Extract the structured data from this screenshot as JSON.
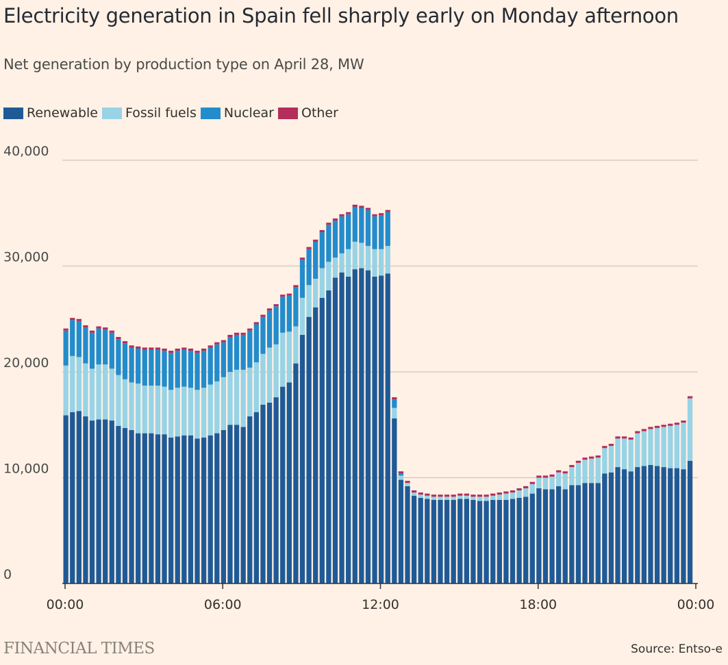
{
  "title": "Electricity generation in Spain fell sharply early on Monday afternoon",
  "subtitle": "Net generation by production type on April 28, MW",
  "source": "Source: Entso-e",
  "brand": "FINANCIAL TIMES",
  "colors": {
    "renewable": "#1F5A96",
    "fossil": "#98D3E6",
    "nuclear": "#228CCC",
    "other": "#B32E5B",
    "background": "#FFF1E5",
    "gridline": "#CEC6B9"
  },
  "chart_data": {
    "type": "bar",
    "stacked": true,
    "title": "Electricity generation in Spain fell sharply early on Monday afternoon",
    "subtitle": "Net generation by production type on April 28, MW",
    "xlabel": "",
    "ylabel": "",
    "ylim": [
      0,
      40000
    ],
    "y_ticks": [
      0,
      10000,
      20000,
      30000,
      40000
    ],
    "y_tick_labels": [
      "0",
      "10,000",
      "20,000",
      "30,000",
      "40,000"
    ],
    "x_ticks": [
      "00:00",
      "06:00",
      "12:00",
      "18:00",
      "00:00"
    ],
    "interval_minutes": 15,
    "grid": true,
    "legend_position": "top-left",
    "series": [
      {
        "name": "Renewable",
        "color": "#1F5A96",
        "values": [
          15900,
          16200,
          16300,
          15800,
          15400,
          15500,
          15500,
          15400,
          14900,
          14700,
          14500,
          14200,
          14200,
          14200,
          14100,
          14100,
          13800,
          13900,
          14000,
          14000,
          13700,
          13800,
          14000,
          14200,
          14500,
          15000,
          15000,
          14800,
          15800,
          16200,
          16900,
          17100,
          17600,
          18600,
          19000,
          20800,
          23500,
          25200,
          26100,
          27000,
          27700,
          28900,
          29400,
          29000,
          29700,
          29800,
          29600,
          29000,
          29100,
          29300,
          15600,
          9800,
          9200,
          8300,
          8100,
          8000,
          7900,
          7900,
          7900,
          7900,
          8000,
          8000,
          7900,
          7800,
          7800,
          7900,
          7900,
          7900,
          8000,
          8100,
          8200,
          8500,
          9000,
          8900,
          8900,
          9200,
          8900,
          9300,
          9300,
          9500,
          9500,
          9500,
          10400,
          10500,
          11000,
          10800,
          10600,
          11000,
          11100,
          11200,
          11100,
          11000,
          10900,
          10900,
          10800,
          11600
        ]
      },
      {
        "name": "Fossil fuels",
        "values": [
          4700,
          5300,
          5100,
          5000,
          4900,
          5200,
          5200,
          4900,
          4800,
          4600,
          4500,
          4700,
          4500,
          4500,
          4600,
          4500,
          4500,
          4600,
          4600,
          4500,
          4600,
          4700,
          4800,
          4900,
          5000,
          5000,
          5200,
          5400,
          4600,
          4700,
          4800,
          5200,
          5000,
          5100,
          4800,
          3500,
          3500,
          3000,
          2700,
          2800,
          2700,
          1900,
          1800,
          2600,
          2600,
          2400,
          2300,
          2600,
          2500,
          2600,
          1000,
          400,
          300,
          300,
          300,
          300,
          300,
          300,
          300,
          300,
          300,
          300,
          300,
          400,
          400,
          400,
          500,
          600,
          600,
          700,
          800,
          900,
          1000,
          1100,
          1200,
          1300,
          1500,
          1700,
          2100,
          2200,
          2300,
          2400,
          2400,
          2500,
          2700,
          2900,
          3000,
          3200,
          3300,
          3400,
          3600,
          3800,
          4000,
          4100,
          4400,
          5900
        ]
      },
      {
        "name": "Nuclear",
        "values": [
          3300,
          3400,
          3400,
          3400,
          3400,
          3400,
          3300,
          3400,
          3400,
          3400,
          3300,
          3300,
          3400,
          3400,
          3400,
          3400,
          3500,
          3500,
          3500,
          3500,
          3500,
          3500,
          3500,
          3500,
          3300,
          3300,
          3300,
          3300,
          3500,
          3600,
          3500,
          3500,
          3600,
          3400,
          3400,
          3700,
          3600,
          3400,
          3500,
          3400,
          3500,
          3500,
          3500,
          3300,
          3300,
          3300,
          3400,
          3100,
          3200,
          3200,
          800,
          200,
          0,
          0,
          0,
          0,
          0,
          0,
          0,
          0,
          0,
          0,
          0,
          0,
          0,
          0,
          0,
          0,
          0,
          0,
          0,
          0,
          0,
          0,
          0,
          0,
          0,
          0,
          0,
          0,
          0,
          0,
          0,
          0,
          0,
          0,
          0,
          0,
          0,
          0,
          0,
          0,
          0,
          0,
          0,
          0
        ]
      },
      {
        "name": "Other",
        "values": [
          200,
          200,
          200,
          200,
          200,
          200,
          200,
          200,
          200,
          200,
          200,
          200,
          200,
          200,
          200,
          200,
          200,
          200,
          200,
          200,
          200,
          200,
          200,
          200,
          200,
          200,
          200,
          200,
          200,
          200,
          200,
          200,
          200,
          200,
          200,
          200,
          200,
          200,
          200,
          200,
          200,
          200,
          200,
          200,
          200,
          200,
          200,
          200,
          200,
          200,
          200,
          200,
          200,
          200,
          200,
          200,
          200,
          200,
          200,
          200,
          200,
          200,
          200,
          200,
          200,
          200,
          200,
          200,
          200,
          200,
          200,
          200,
          200,
          200,
          200,
          200,
          200,
          200,
          200,
          200,
          200,
          200,
          200,
          200,
          200,
          200,
          200,
          200,
          200,
          200,
          200,
          200,
          200,
          200,
          200,
          200
        ]
      }
    ]
  }
}
